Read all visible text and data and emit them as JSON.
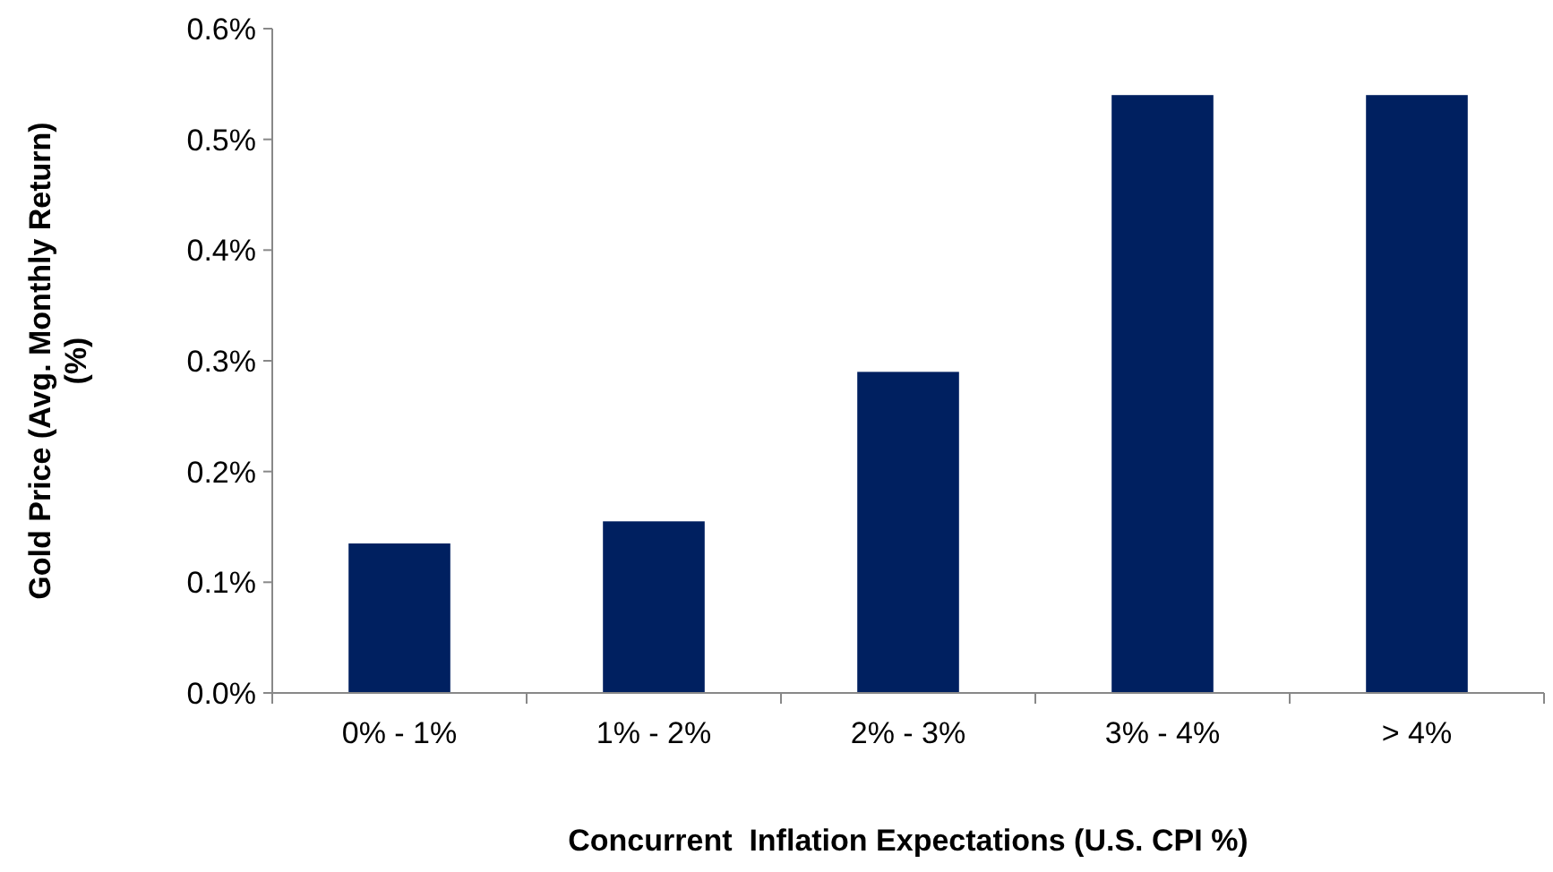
{
  "chart_data": {
    "type": "bar",
    "xlabel": "Concurrent  Inflation Expectations (U.S. CPI %)",
    "ylabel": "Gold Price (Avg. Monthly Return)\n(%)",
    "categories": [
      "0% - 1%",
      "1% - 2%",
      "2% - 3%",
      "3% - 4%",
      "> 4%"
    ],
    "values": [
      0.135,
      0.155,
      0.29,
      0.54,
      0.54
    ],
    "color": "#002060",
    "ylim": [
      0,
      0.6
    ],
    "yticks": [
      {
        "value": 0,
        "label": "0.0%"
      },
      {
        "value": 0.1,
        "label": "0.1%"
      },
      {
        "value": 0.2,
        "label": "0.2%"
      },
      {
        "value": 0.3,
        "label": "0.3%"
      },
      {
        "value": 0.4,
        "label": "0.4%"
      },
      {
        "value": 0.5,
        "label": "0.5%"
      },
      {
        "value": 0.6,
        "label": "0.6%"
      }
    ],
    "grid": false
  }
}
